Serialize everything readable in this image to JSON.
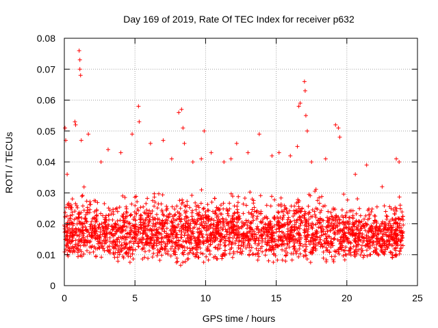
{
  "chart_data": {
    "type": "scatter",
    "title": "Day 169 of 2019, Rate Of TEC Index for receiver p632",
    "xlabel": "GPS time / hours",
    "ylabel": "ROTI / TECUs",
    "xlim": [
      0,
      25
    ],
    "ylim": [
      0,
      0.08
    ],
    "x_ticks": [
      0,
      5,
      10,
      15,
      20,
      25
    ],
    "x_tick_labels": [
      "0",
      "5",
      "10",
      "15",
      "20",
      "25"
    ],
    "y_ticks": [
      0,
      0.01,
      0.02,
      0.03,
      0.04,
      0.05,
      0.06,
      0.07,
      0.08
    ],
    "y_tick_labels": [
      "0",
      "0.01",
      "0.02",
      "0.03",
      "0.04",
      "0.05",
      "0.06",
      "0.07",
      "0.08"
    ],
    "grid": true,
    "marker": "+",
    "color": "#ff0000",
    "series": [
      {
        "name": "ROTI",
        "envelope": {
          "x": [
            0,
            1,
            2,
            3,
            4,
            5,
            6,
            7,
            8,
            9,
            10,
            11,
            12,
            13,
            14,
            15,
            16,
            17,
            18,
            19,
            20,
            21,
            22,
            23,
            24
          ],
          "low": [
            0.008,
            0.007,
            0.008,
            0.007,
            0.006,
            0.006,
            0.007,
            0.007,
            0.006,
            0.007,
            0.007,
            0.007,
            0.007,
            0.007,
            0.006,
            0.007,
            0.007,
            0.006,
            0.007,
            0.007,
            0.007,
            0.007,
            0.008,
            0.007,
            0.007
          ],
          "high": [
            0.033,
            0.034,
            0.033,
            0.032,
            0.031,
            0.033,
            0.033,
            0.033,
            0.034,
            0.033,
            0.033,
            0.032,
            0.033,
            0.033,
            0.032,
            0.033,
            0.033,
            0.033,
            0.033,
            0.031,
            0.031,
            0.031,
            0.029,
            0.029,
            0.032
          ]
        },
        "peaks": [
          {
            "x": 0.05,
            "y": 0.051
          },
          {
            "x": 0.1,
            "y": 0.047
          },
          {
            "x": 0.2,
            "y": 0.036
          },
          {
            "x": 0.75,
            "y": 0.053
          },
          {
            "x": 0.8,
            "y": 0.052
          },
          {
            "x": 1.05,
            "y": 0.076
          },
          {
            "x": 1.1,
            "y": 0.073
          },
          {
            "x": 1.1,
            "y": 0.07
          },
          {
            "x": 1.15,
            "y": 0.068
          },
          {
            "x": 1.2,
            "y": 0.047
          },
          {
            "x": 1.7,
            "y": 0.049
          },
          {
            "x": 2.6,
            "y": 0.04
          },
          {
            "x": 3.1,
            "y": 0.044
          },
          {
            "x": 4.0,
            "y": 0.043
          },
          {
            "x": 4.8,
            "y": 0.049
          },
          {
            "x": 5.25,
            "y": 0.058
          },
          {
            "x": 5.3,
            "y": 0.053
          },
          {
            "x": 6.1,
            "y": 0.046
          },
          {
            "x": 7.0,
            "y": 0.047
          },
          {
            "x": 7.6,
            "y": 0.041
          },
          {
            "x": 8.1,
            "y": 0.056
          },
          {
            "x": 8.3,
            "y": 0.057
          },
          {
            "x": 8.4,
            "y": 0.051
          },
          {
            "x": 8.5,
            "y": 0.046
          },
          {
            "x": 9.1,
            "y": 0.04
          },
          {
            "x": 9.7,
            "y": 0.041
          },
          {
            "x": 9.9,
            "y": 0.05
          },
          {
            "x": 10.4,
            "y": 0.043
          },
          {
            "x": 11.3,
            "y": 0.04
          },
          {
            "x": 11.8,
            "y": 0.041
          },
          {
            "x": 12.2,
            "y": 0.046
          },
          {
            "x": 13.0,
            "y": 0.043
          },
          {
            "x": 13.8,
            "y": 0.049
          },
          {
            "x": 14.7,
            "y": 0.042
          },
          {
            "x": 15.2,
            "y": 0.043
          },
          {
            "x": 16.0,
            "y": 0.042
          },
          {
            "x": 16.5,
            "y": 0.045
          },
          {
            "x": 16.6,
            "y": 0.058
          },
          {
            "x": 16.7,
            "y": 0.059
          },
          {
            "x": 17.0,
            "y": 0.066
          },
          {
            "x": 17.05,
            "y": 0.063
          },
          {
            "x": 17.1,
            "y": 0.055
          },
          {
            "x": 17.2,
            "y": 0.05
          },
          {
            "x": 17.5,
            "y": 0.04
          },
          {
            "x": 18.5,
            "y": 0.041
          },
          {
            "x": 19.2,
            "y": 0.052
          },
          {
            "x": 19.4,
            "y": 0.051
          },
          {
            "x": 19.5,
            "y": 0.048
          },
          {
            "x": 20.6,
            "y": 0.036
          },
          {
            "x": 21.4,
            "y": 0.039
          },
          {
            "x": 22.5,
            "y": 0.032
          },
          {
            "x": 23.5,
            "y": 0.041
          },
          {
            "x": 23.7,
            "y": 0.04
          }
        ]
      }
    ]
  }
}
